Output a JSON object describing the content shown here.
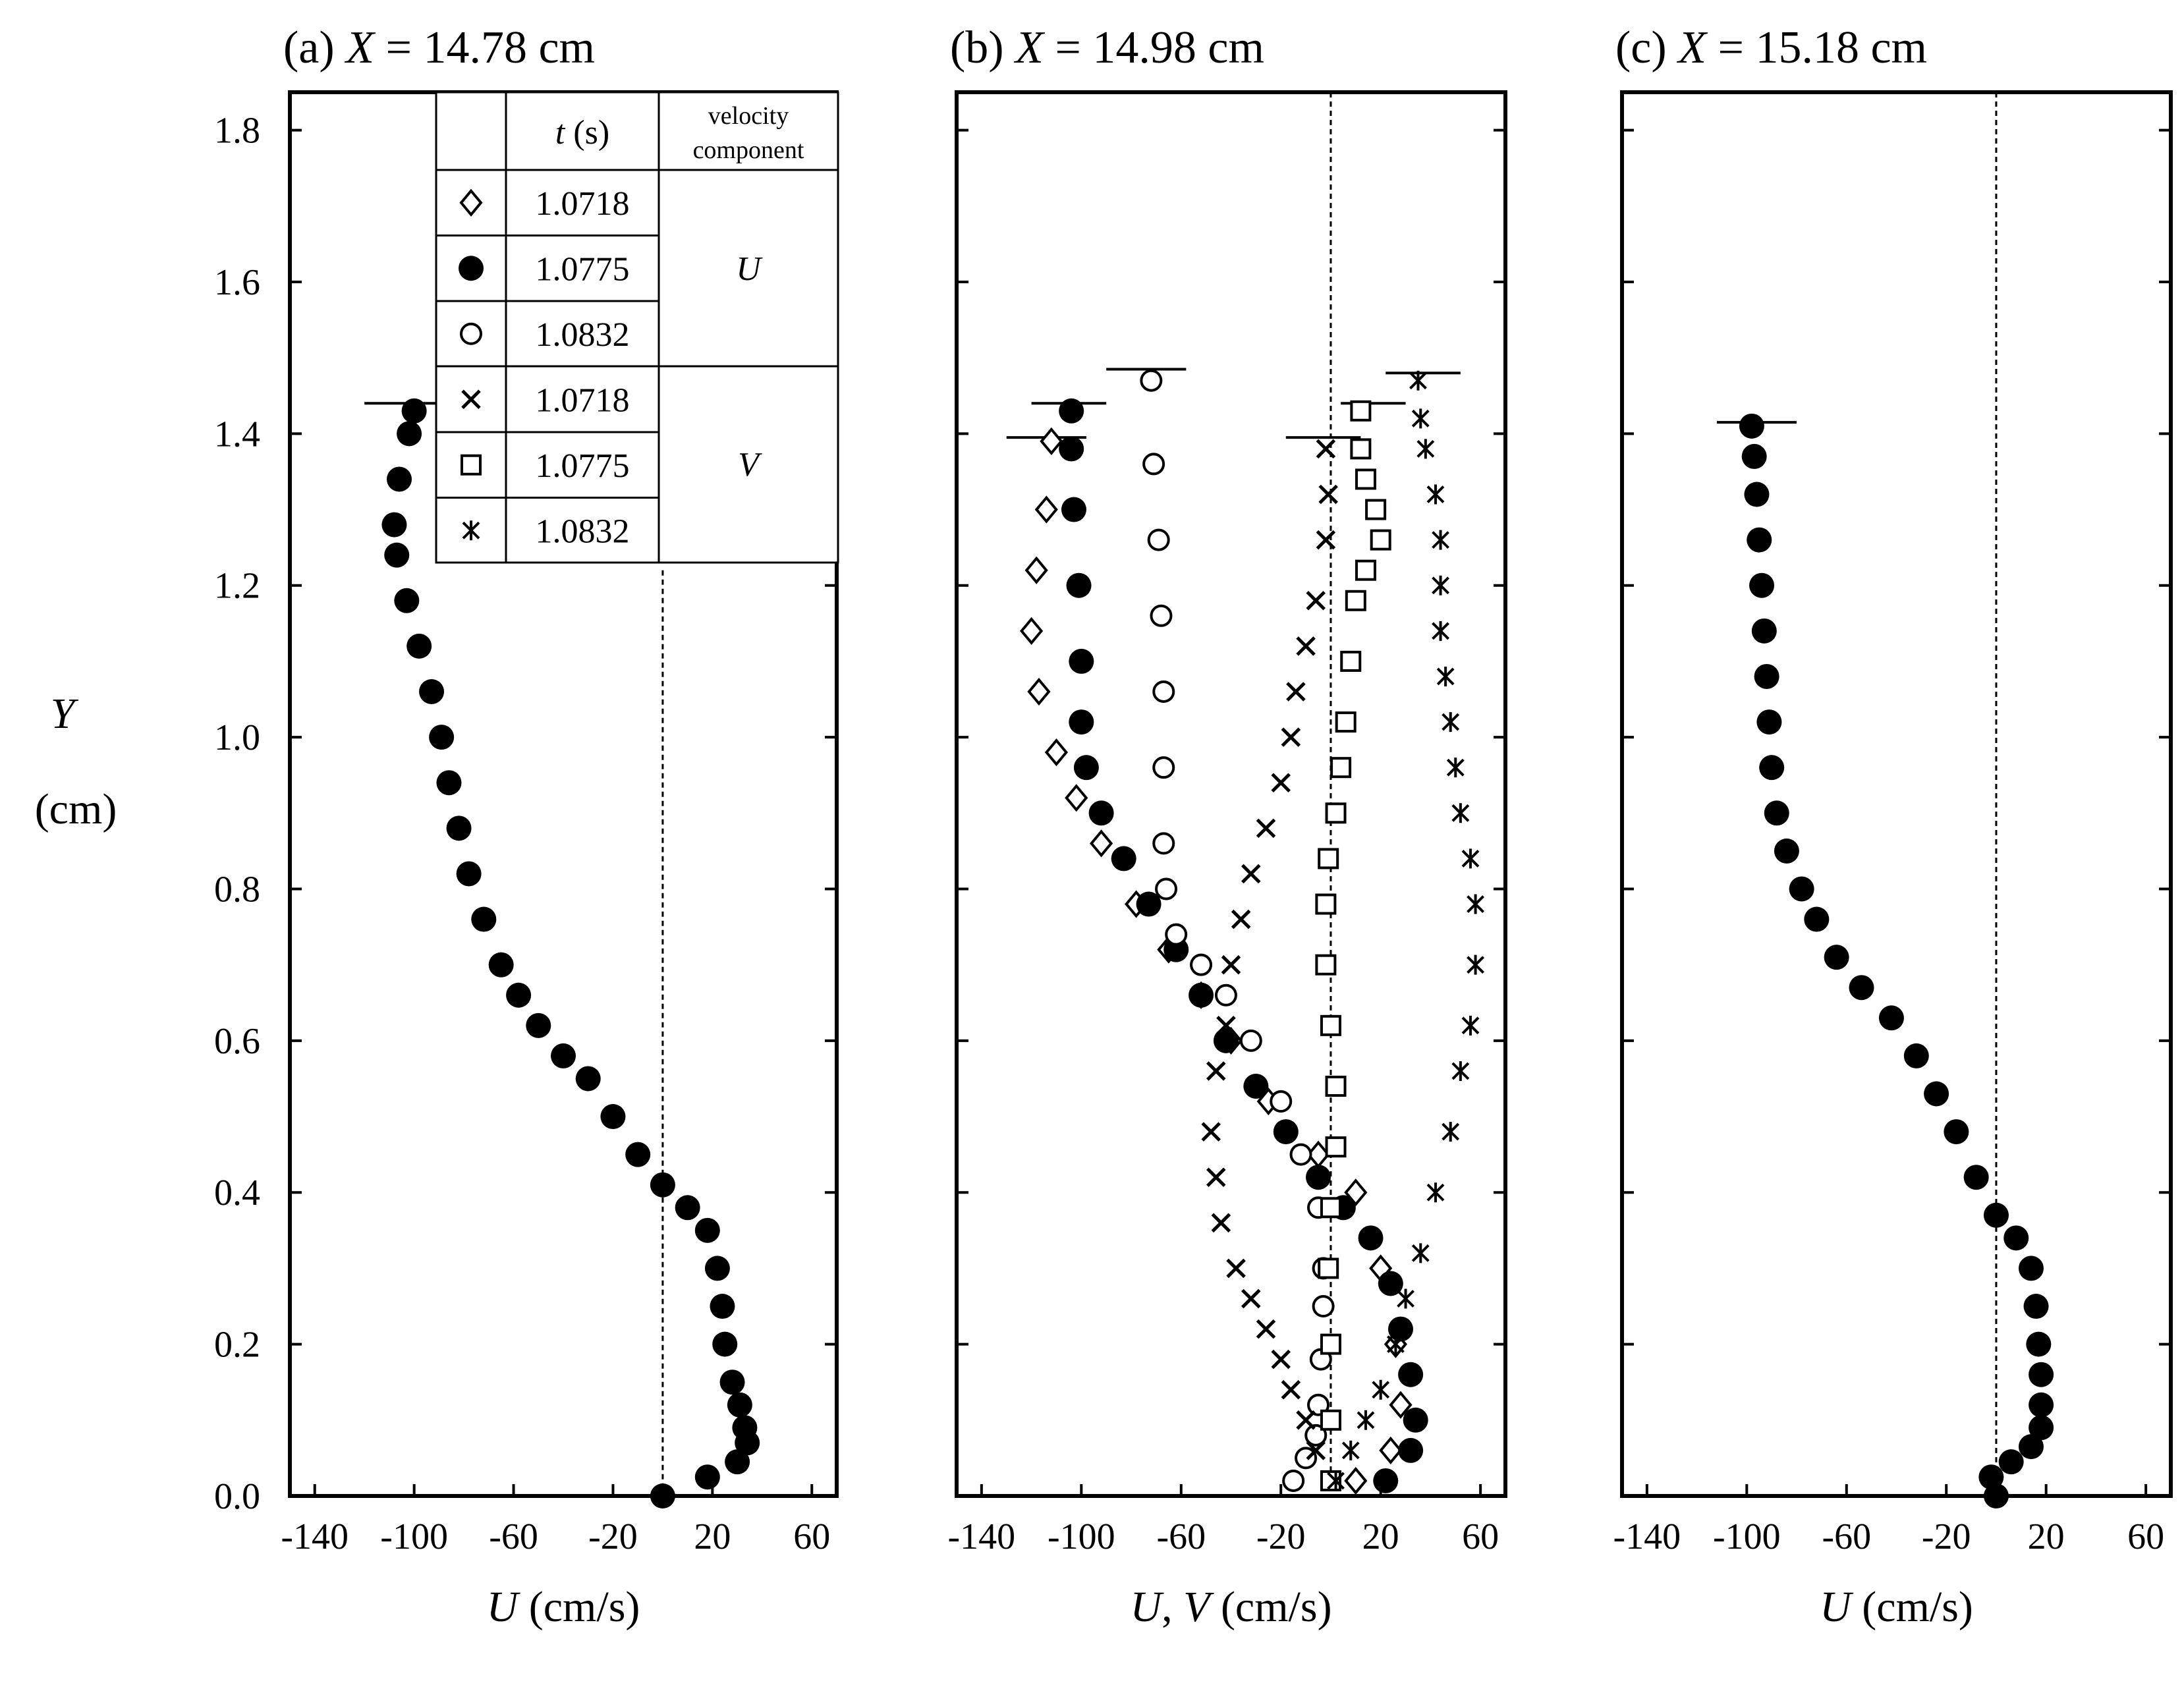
{
  "figure": {
    "y_axis_title": "Y",
    "y_axis_unit": "(cm)",
    "y_ticks": [
      "0.0",
      "0.2",
      "0.4",
      "0.6",
      "0.8",
      "1.0",
      "1.2",
      "1.4",
      "1.6",
      "1.8"
    ],
    "x_ticks": [
      "-140",
      "-100",
      "-60",
      "-20",
      "20",
      "60"
    ]
  },
  "legend": {
    "header_t": "t (s)",
    "header_component_line1": "velocity",
    "header_component_line2": "component",
    "component_u": "U",
    "component_v": "V",
    "rows": [
      {
        "marker": "diamond",
        "time": "1.0718"
      },
      {
        "marker": "filled-circle",
        "time": "1.0775"
      },
      {
        "marker": "open-circle",
        "time": "1.0832"
      },
      {
        "marker": "cross",
        "time": "1.0718"
      },
      {
        "marker": "square",
        "time": "1.0775"
      },
      {
        "marker": "asterisk",
        "time": "1.0832"
      }
    ]
  },
  "chart_data": [
    {
      "type": "scatter",
      "panel": "(a)",
      "title_var": "X",
      "title_value": "= 14.78 cm",
      "xlabel": "U (cm/s)",
      "ylabel": "Y (cm)",
      "xlim": [
        -150,
        70
      ],
      "ylim": [
        0,
        1.85
      ],
      "series": [
        {
          "name": "U, t = 1.0775 s",
          "marker": "filled-circle",
          "points": [
            [
              0,
              0
            ],
            [
              18,
              0.025
            ],
            [
              30,
              0.045
            ],
            [
              34,
              0.07
            ],
            [
              33,
              0.09
            ],
            [
              31,
              0.12
            ],
            [
              28,
              0.15
            ],
            [
              25,
              0.2
            ],
            [
              24,
              0.25
            ],
            [
              22,
              0.3
            ],
            [
              18,
              0.35
            ],
            [
              10,
              0.38
            ],
            [
              0,
              0.41
            ],
            [
              -10,
              0.45
            ],
            [
              -20,
              0.5
            ],
            [
              -30,
              0.55
            ],
            [
              -40,
              0.58
            ],
            [
              -50,
              0.62
            ],
            [
              -58,
              0.66
            ],
            [
              -65,
              0.7
            ],
            [
              -72,
              0.76
            ],
            [
              -78,
              0.82
            ],
            [
              -82,
              0.88
            ],
            [
              -86,
              0.94
            ],
            [
              -89,
              1.0
            ],
            [
              -93,
              1.06
            ],
            [
              -98,
              1.12
            ],
            [
              -103,
              1.18
            ],
            [
              -107,
              1.24
            ],
            [
              -108,
              1.28
            ],
            [
              -106,
              1.34
            ],
            [
              -102,
              1.4
            ],
            [
              -100,
              1.43
            ]
          ],
          "cap": {
            "y": 1.44,
            "x0": -120,
            "x1": -90
          }
        }
      ]
    },
    {
      "type": "scatter",
      "panel": "(b)",
      "title_var": "X",
      "title_value": "= 14.98 cm",
      "xlabel": "U, V (cm/s)",
      "ylabel": "Y (cm)",
      "xlim": [
        -150,
        70
      ],
      "ylim": [
        0,
        1.85
      ],
      "series": [
        {
          "name": "U, t = 1.0718 s",
          "marker": "diamond",
          "points": [
            [
              10,
              0.02
            ],
            [
              24,
              0.06
            ],
            [
              28,
              0.12
            ],
            [
              26,
              0.2
            ],
            [
              20,
              0.3
            ],
            [
              10,
              0.4
            ],
            [
              -5,
              0.45
            ],
            [
              -25,
              0.52
            ],
            [
              -40,
              0.6
            ],
            [
              -52,
              0.66
            ],
            [
              -65,
              0.72
            ],
            [
              -78,
              0.78
            ],
            [
              -92,
              0.86
            ],
            [
              -102,
              0.92
            ],
            [
              -110,
              0.98
            ],
            [
              -117,
              1.06
            ],
            [
              -120,
              1.14
            ],
            [
              -118,
              1.22
            ],
            [
              -114,
              1.3
            ],
            [
              -112,
              1.39
            ]
          ],
          "cap": {
            "y": 1.395,
            "x0": -130,
            "x1": -98
          }
        },
        {
          "name": "U, t = 1.0775 s",
          "marker": "filled-circle",
          "points": [
            [
              22,
              0.02
            ],
            [
              32,
              0.06
            ],
            [
              34,
              0.1
            ],
            [
              32,
              0.16
            ],
            [
              28,
              0.22
            ],
            [
              24,
              0.28
            ],
            [
              16,
              0.34
            ],
            [
              5,
              0.38
            ],
            [
              -5,
              0.42
            ],
            [
              -18,
              0.48
            ],
            [
              -30,
              0.54
            ],
            [
              -42,
              0.6
            ],
            [
              -52,
              0.66
            ],
            [
              -62,
              0.72
            ],
            [
              -73,
              0.78
            ],
            [
              -83,
              0.84
            ],
            [
              -92,
              0.9
            ],
            [
              -98,
              0.96
            ],
            [
              -100,
              1.02
            ],
            [
              -100,
              1.1
            ],
            [
              -101,
              1.2
            ],
            [
              -103,
              1.3
            ],
            [
              -104,
              1.38
            ],
            [
              -104,
              1.43
            ]
          ],
          "cap": {
            "y": 1.44,
            "x0": -120,
            "x1": -90
          }
        },
        {
          "name": "U, t = 1.0832 s",
          "marker": "open-circle",
          "points": [
            [
              -15,
              0.02
            ],
            [
              -10,
              0.05
            ],
            [
              -6,
              0.08
            ],
            [
              -5,
              0.12
            ],
            [
              -4,
              0.18
            ],
            [
              -3,
              0.25
            ],
            [
              -3,
              0.3
            ],
            [
              -5,
              0.38
            ],
            [
              -12,
              0.45
            ],
            [
              -20,
              0.52
            ],
            [
              -32,
              0.6
            ],
            [
              -42,
              0.66
            ],
            [
              -52,
              0.7
            ],
            [
              -62,
              0.74
            ],
            [
              -66,
              0.8
            ],
            [
              -67,
              0.86
            ],
            [
              -67,
              0.96
            ],
            [
              -67,
              1.06
            ],
            [
              -68,
              1.16
            ],
            [
              -69,
              1.26
            ],
            [
              -71,
              1.36
            ],
            [
              -72,
              1.47
            ]
          ],
          "cap": {
            "y": 1.485,
            "x0": -90,
            "x1": -58
          }
        },
        {
          "name": "V, t = 1.0718 s",
          "marker": "cross",
          "points": [
            [
              -6,
              0.06
            ],
            [
              -10,
              0.1
            ],
            [
              -16,
              0.14
            ],
            [
              -20,
              0.18
            ],
            [
              -26,
              0.22
            ],
            [
              -32,
              0.26
            ],
            [
              -38,
              0.3
            ],
            [
              -44,
              0.36
            ],
            [
              -46,
              0.42
            ],
            [
              -48,
              0.48
            ],
            [
              -46,
              0.56
            ],
            [
              -42,
              0.62
            ],
            [
              -40,
              0.7
            ],
            [
              -36,
              0.76
            ],
            [
              -32,
              0.82
            ],
            [
              -26,
              0.88
            ],
            [
              -20,
              0.94
            ],
            [
              -16,
              1.0
            ],
            [
              -14,
              1.06
            ],
            [
              -10,
              1.12
            ],
            [
              -6,
              1.18
            ],
            [
              -2,
              1.26
            ],
            [
              -1,
              1.32
            ],
            [
              -2,
              1.38
            ]
          ],
          "cap": {
            "y": 1.395,
            "x0": -18,
            "x1": 12
          }
        },
        {
          "name": "V, t = 1.0775 s",
          "marker": "square",
          "points": [
            [
              0,
              0.02
            ],
            [
              0,
              0.1
            ],
            [
              0,
              0.2
            ],
            [
              -1,
              0.3
            ],
            [
              0,
              0.38
            ],
            [
              2,
              0.46
            ],
            [
              2,
              0.54
            ],
            [
              0,
              0.62
            ],
            [
              -2,
              0.7
            ],
            [
              -2,
              0.78
            ],
            [
              -1,
              0.84
            ],
            [
              2,
              0.9
            ],
            [
              4,
              0.96
            ],
            [
              6,
              1.02
            ],
            [
              8,
              1.1
            ],
            [
              10,
              1.18
            ],
            [
              14,
              1.22
            ],
            [
              20,
              1.26
            ],
            [
              18,
              1.3
            ],
            [
              14,
              1.34
            ],
            [
              12,
              1.38
            ],
            [
              12,
              1.43
            ]
          ],
          "cap": {
            "y": 1.44,
            "x0": 4,
            "x1": 30
          }
        },
        {
          "name": "V, t = 1.0832 s",
          "marker": "asterisk",
          "points": [
            [
              2,
              0.02
            ],
            [
              8,
              0.06
            ],
            [
              14,
              0.1
            ],
            [
              20,
              0.14
            ],
            [
              26,
              0.2
            ],
            [
              30,
              0.26
            ],
            [
              36,
              0.32
            ],
            [
              42,
              0.4
            ],
            [
              48,
              0.48
            ],
            [
              52,
              0.56
            ],
            [
              56,
              0.62
            ],
            [
              58,
              0.7
            ],
            [
              58,
              0.78
            ],
            [
              56,
              0.84
            ],
            [
              52,
              0.9
            ],
            [
              50,
              0.96
            ],
            [
              48,
              1.02
            ],
            [
              46,
              1.08
            ],
            [
              44,
              1.14
            ],
            [
              44,
              1.2
            ],
            [
              44,
              1.26
            ],
            [
              42,
              1.32
            ],
            [
              38,
              1.38
            ],
            [
              36,
              1.42
            ],
            [
              35,
              1.47
            ]
          ],
          "cap": {
            "y": 1.48,
            "x0": 22,
            "x1": 52
          }
        }
      ]
    },
    {
      "type": "scatter",
      "panel": "(c)",
      "title_var": "X",
      "title_value": "= 15.18 cm",
      "xlabel": "U (cm/s)",
      "ylabel": "Y (cm)",
      "xlim": [
        -150,
        70
      ],
      "ylim": [
        0,
        1.85
      ],
      "series": [
        {
          "name": "U, t = 1.0775 s",
          "marker": "filled-circle",
          "points": [
            [
              0,
              0
            ],
            [
              -2,
              0.025
            ],
            [
              6,
              0.045
            ],
            [
              14,
              0.065
            ],
            [
              18,
              0.09
            ],
            [
              18,
              0.12
            ],
            [
              18,
              0.16
            ],
            [
              17,
              0.2
            ],
            [
              16,
              0.25
            ],
            [
              14,
              0.3
            ],
            [
              8,
              0.34
            ],
            [
              0,
              0.37
            ],
            [
              -8,
              0.42
            ],
            [
              -16,
              0.48
            ],
            [
              -24,
              0.53
            ],
            [
              -32,
              0.58
            ],
            [
              -42,
              0.63
            ],
            [
              -54,
              0.67
            ],
            [
              -64,
              0.71
            ],
            [
              -72,
              0.76
            ],
            [
              -78,
              0.8
            ],
            [
              -84,
              0.85
            ],
            [
              -88,
              0.9
            ],
            [
              -90,
              0.96
            ],
            [
              -91,
              1.02
            ],
            [
              -92,
              1.08
            ],
            [
              -93,
              1.14
            ],
            [
              -94,
              1.2
            ],
            [
              -95,
              1.26
            ],
            [
              -96,
              1.32
            ],
            [
              -97,
              1.37
            ],
            [
              -98,
              1.41
            ]
          ],
          "cap": {
            "y": 1.415,
            "x0": -112,
            "x1": -80
          }
        }
      ]
    }
  ]
}
